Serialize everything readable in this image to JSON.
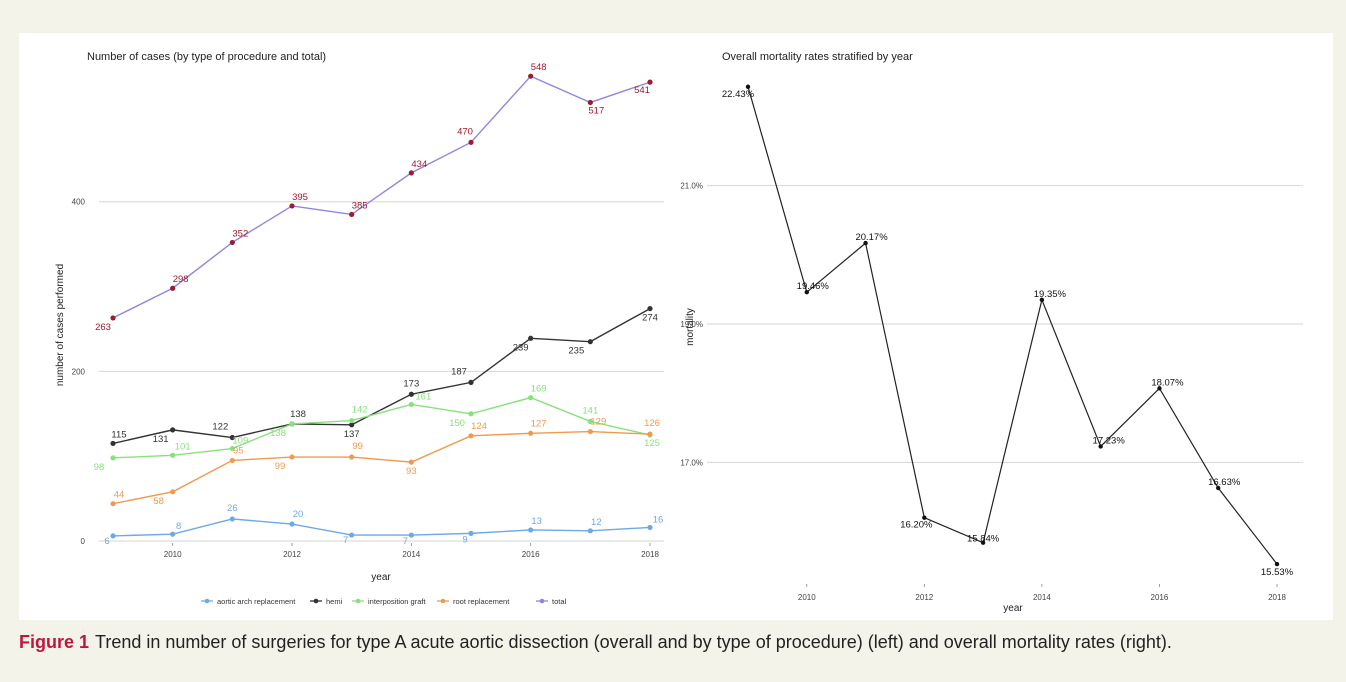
{
  "caption": {
    "label": "Figure 1",
    "text": "Trend in number of surgeries for type A acute aortic dissection (overall and by type of procedure) (left) and overall mortality rates (right)."
  },
  "chart_data": [
    {
      "type": "line",
      "title": "Number of cases (by type of procedure and total)",
      "xlabel": "year",
      "ylabel": "number of cases performed",
      "x": [
        2009,
        2010,
        2011,
        2012,
        2013,
        2014,
        2015,
        2016,
        2017,
        2018
      ],
      "xticks": [
        "2010",
        "2012",
        "2014",
        "2016",
        "2018"
      ],
      "yticks": [
        "0",
        "200",
        "400"
      ],
      "ylim": [
        0,
        560
      ],
      "grid": "horizontal",
      "legend_position": "bottom",
      "series": [
        {
          "name": "aortic arch replacement",
          "color": "#6fa8e6",
          "values": [
            6,
            8,
            26,
            20,
            7,
            7,
            9,
            13,
            12,
            16
          ],
          "labels": [
            "6",
            "8",
            "26",
            "20",
            "7",
            "7",
            "9",
            "13",
            "12",
            "16"
          ]
        },
        {
          "name": "hemi",
          "color": "#333333",
          "values": [
            115,
            131,
            122,
            138,
            137,
            173,
            187,
            239,
            235,
            274
          ],
          "labels": [
            "115",
            "131",
            "122",
            "138",
            "137",
            "173",
            "187",
            "239",
            "235",
            "274"
          ]
        },
        {
          "name": "interposition graft",
          "color": "#86e27a",
          "values": [
            98,
            101,
            109,
            138,
            142,
            161,
            150,
            169,
            141,
            125
          ],
          "labels": [
            "98",
            "101",
            "109",
            "138",
            "142",
            "161",
            "150",
            "169",
            "141",
            "125"
          ]
        },
        {
          "name": "root replacement",
          "color": "#f09a4e",
          "values": [
            44,
            58,
            95,
            99,
            99,
            93,
            124,
            127,
            129,
            126
          ],
          "labels": [
            "44",
            "58",
            "95",
            "99",
            "99",
            "93",
            "124",
            "127",
            "129",
            "126"
          ]
        },
        {
          "name": "total",
          "color": "#8f86e3",
          "label_color": "#9e1a2e",
          "values": [
            263,
            298,
            352,
            395,
            385,
            434,
            470,
            548,
            517,
            541
          ],
          "labels": [
            "263",
            "298",
            "352",
            "395",
            "385",
            "434",
            "470",
            "548",
            "517",
            "541"
          ]
        }
      ]
    },
    {
      "type": "line",
      "title": "Overall mortality rates stratified by year",
      "xlabel": "year",
      "ylabel": "mortality",
      "x": [
        2009,
        2010,
        2011,
        2012,
        2013,
        2014,
        2015,
        2016,
        2017,
        2018
      ],
      "xticks": [
        "2010",
        "2012",
        "2014",
        "2016",
        "2018"
      ],
      "yticks": [
        "17.0%",
        "19.0%",
        "21.0%"
      ],
      "ylim": [
        15.3,
        22.6
      ],
      "grid": "horizontal",
      "series": [
        {
          "color": "#222222",
          "values": [
            22.43,
            19.46,
            20.17,
            16.2,
            15.84,
            19.35,
            17.23,
            18.07,
            16.63,
            15.53
          ],
          "labels": [
            "22.43%",
            "19.46%",
            "20.17%",
            "16.20%",
            "15.84%",
            "19.35%",
            "17.23%",
            "18.07%",
            "16.63%",
            "15.53%"
          ]
        }
      ]
    }
  ]
}
